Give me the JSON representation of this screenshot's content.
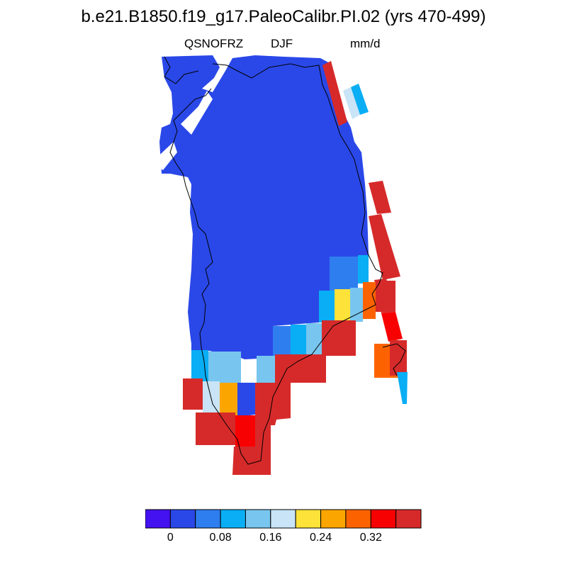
{
  "title": "b.e21.B1850.f19_g17.PaleoCalibr.PI.02 (yrs 470-499)",
  "variable": "QSNOFRZ",
  "season": "DJF",
  "units": "mm/d",
  "colorbar": {
    "colors": [
      "#4411f0",
      "#2a48e8",
      "#2f7eef",
      "#0aaef4",
      "#78c6ef",
      "#c8e4f6",
      "#fde239",
      "#fba501",
      "#fc6300",
      "#f80102",
      "#d62a2a"
    ],
    "tick_labels": [
      "0",
      "0.08",
      "0.16",
      "0.24",
      "0.32"
    ]
  },
  "chart_data": {
    "type": "heatmap",
    "title": "b.e21.B1850.f19_g17.PaleoCalibr.PI.02 (yrs 470-499)",
    "variable": "QSNOFRZ",
    "season": "DJF",
    "units": "mm/d",
    "levels": [
      0,
      0.04,
      0.08,
      0.12,
      0.16,
      0.2,
      0.24,
      0.28,
      0.32,
      0.36
    ],
    "region": "Greenland",
    "note_values": "most of ice sheet in lowest bin (~0.0-0.04); coastal margins 0.08-0.36+"
  }
}
